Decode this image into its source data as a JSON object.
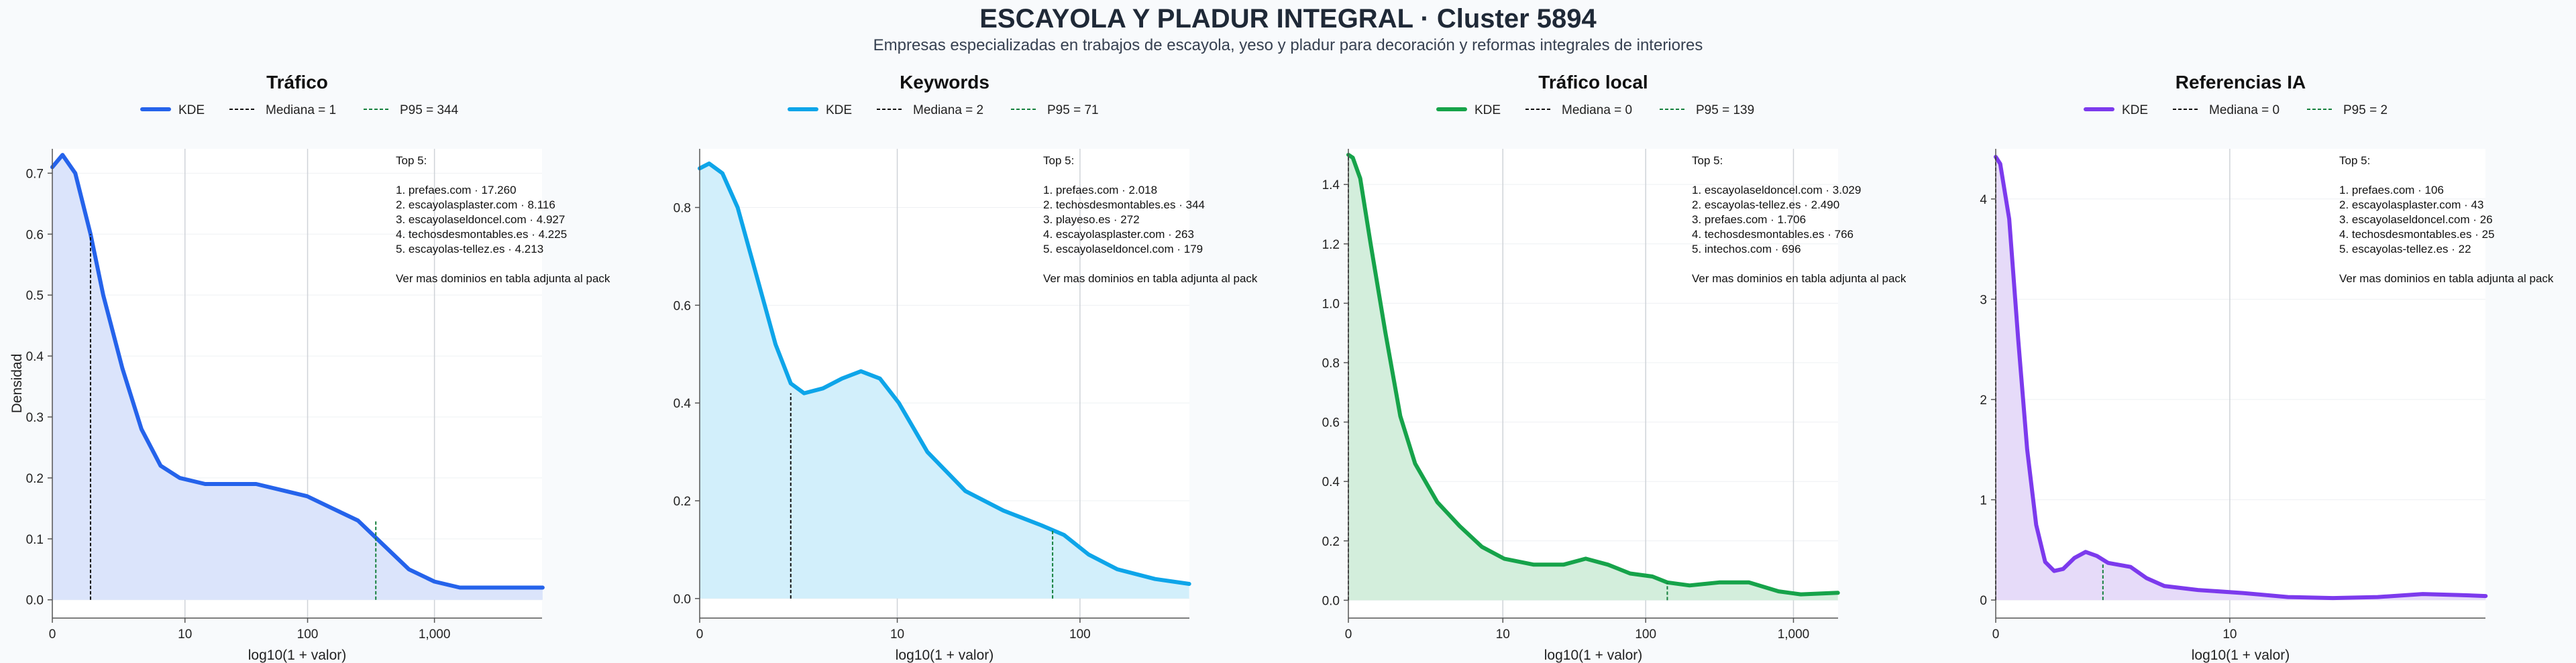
{
  "title": "ESCAYOLA Y PLADUR INTEGRAL · Cluster 5894",
  "subtitle": "Empresas especializadas en trabajos de escayola, yeso y pladur para decoración y reformas integrales de interiores",
  "chart_data": [
    {
      "type": "area",
      "title": "Tráfico",
      "xlabel": "log10(1 + valor)",
      "ylabel": "Densidad",
      "color": "#2563eb",
      "fill": "#dbe4fb",
      "xscale": "log1p",
      "xmax_value": 7000,
      "ylim": [
        -0.03,
        0.74
      ],
      "xticks": [
        {
          "value": 0,
          "label": "0"
        },
        {
          "value": 10,
          "label": "10"
        },
        {
          "value": 100,
          "label": "100"
        },
        {
          "value": 1000,
          "label": "1,000"
        }
      ],
      "yticks": [
        {
          "value": 0,
          "label": "0.0"
        },
        {
          "value": 0.1,
          "label": "0.1"
        },
        {
          "value": 0.2,
          "label": "0.2"
        },
        {
          "value": 0.3,
          "label": "0.3"
        },
        {
          "value": 0.4,
          "label": "0.4"
        },
        {
          "value": 0.5,
          "label": "0.5"
        },
        {
          "value": 0.6,
          "label": "0.6"
        },
        {
          "value": 0.7,
          "label": "0.7"
        }
      ],
      "kde": [
        [
          0,
          0.71
        ],
        [
          0.08,
          0.73
        ],
        [
          0.18,
          0.7
        ],
        [
          0.3,
          0.6
        ],
        [
          0.4,
          0.5
        ],
        [
          0.55,
          0.38
        ],
        [
          0.7,
          0.28
        ],
        [
          0.85,
          0.22
        ],
        [
          1.0,
          0.2
        ],
        [
          1.2,
          0.19
        ],
        [
          1.4,
          0.19
        ],
        [
          1.6,
          0.19
        ],
        [
          1.8,
          0.18
        ],
        [
          2.0,
          0.17
        ],
        [
          2.2,
          0.15
        ],
        [
          2.4,
          0.13
        ],
        [
          2.6,
          0.09
        ],
        [
          2.8,
          0.05
        ],
        [
          3.0,
          0.03
        ],
        [
          3.2,
          0.02
        ],
        [
          3.5,
          0.02
        ],
        [
          3.85,
          0.02
        ]
      ],
      "median": {
        "value": 1,
        "x": 0.3,
        "y": 0.6
      },
      "p95": {
        "value": 344,
        "x": 2.54,
        "y": 0.13
      },
      "legend": {
        "kde": "KDE",
        "median": "Mediana = 1",
        "p95": "P95 = 344"
      },
      "annotation": [
        "Top 5:",
        "",
        "1. prefaes.com · 17.260",
        "2. escayolasplaster.com · 8.116",
        "3. escayolaseldoncel.com · 4.927",
        "4. techosdesmontables.es · 4.225",
        "5. escayolas-tellez.es · 4.213",
        "",
        "Ver mas dominios en tabla adjunta al pack"
      ]
    },
    {
      "type": "area",
      "title": "Keywords",
      "xlabel": "log10(1 + valor)",
      "ylabel": "",
      "color": "#0ea5e9",
      "fill": "#d2effb",
      "xscale": "log1p",
      "xmax_value": 380,
      "ylim": [
        -0.04,
        0.92
      ],
      "xticks": [
        {
          "value": 0,
          "label": "0"
        },
        {
          "value": 10,
          "label": "10"
        },
        {
          "value": 100,
          "label": "100"
        }
      ],
      "yticks": [
        {
          "value": 0,
          "label": "0.0"
        },
        {
          "value": 0.2,
          "label": "0.2"
        },
        {
          "value": 0.4,
          "label": "0.4"
        },
        {
          "value": 0.6,
          "label": "0.6"
        },
        {
          "value": 0.8,
          "label": "0.8"
        }
      ],
      "kde": [
        [
          0,
          0.88
        ],
        [
          0.05,
          0.89
        ],
        [
          0.12,
          0.87
        ],
        [
          0.2,
          0.8
        ],
        [
          0.3,
          0.66
        ],
        [
          0.4,
          0.52
        ],
        [
          0.48,
          0.44
        ],
        [
          0.55,
          0.42
        ],
        [
          0.65,
          0.43
        ],
        [
          0.75,
          0.45
        ],
        [
          0.85,
          0.465
        ],
        [
          0.95,
          0.45
        ],
        [
          1.05,
          0.4
        ],
        [
          1.2,
          0.3
        ],
        [
          1.4,
          0.22
        ],
        [
          1.6,
          0.18
        ],
        [
          1.8,
          0.15
        ],
        [
          1.92,
          0.13
        ],
        [
          2.05,
          0.09
        ],
        [
          2.2,
          0.06
        ],
        [
          2.4,
          0.04
        ],
        [
          2.58,
          0.03
        ]
      ],
      "median": {
        "value": 2,
        "x": 0.48,
        "y": 0.42
      },
      "p95": {
        "value": 71,
        "x": 1.86,
        "y": 0.14
      },
      "legend": {
        "kde": "KDE",
        "median": "Mediana = 2",
        "p95": "P95 = 71"
      },
      "annotation": [
        "Top 5:",
        "",
        "1. prefaes.com · 2.018",
        "2. techosdesmontables.es · 344",
        "3. playeso.es · 272",
        "4. escayolasplaster.com · 263",
        "5. escayolaseldoncel.com · 179",
        "",
        "Ver mas dominios en tabla adjunta al pack"
      ]
    },
    {
      "type": "area",
      "title": "Tráfico local",
      "xlabel": "log10(1 + valor)",
      "ylabel": "",
      "color": "#16a34a",
      "fill": "#d3eedc",
      "xscale": "log1p",
      "xmax_value": 2000,
      "ylim": [
        -0.06,
        1.52
      ],
      "xticks": [
        {
          "value": 0,
          "label": "0"
        },
        {
          "value": 10,
          "label": "10"
        },
        {
          "value": 100,
          "label": "100"
        },
        {
          "value": 1000,
          "label": "1,000"
        }
      ],
      "yticks": [
        {
          "value": 0,
          "label": "0.0"
        },
        {
          "value": 0.2,
          "label": "0.2"
        },
        {
          "value": 0.4,
          "label": "0.4"
        },
        {
          "value": 0.6,
          "label": "0.6"
        },
        {
          "value": 0.8,
          "label": "0.8"
        },
        {
          "value": 1.0,
          "label": "1.0"
        },
        {
          "value": 1.2,
          "label": "1.2"
        },
        {
          "value": 1.4,
          "label": "1.4"
        }
      ],
      "kde": [
        [
          0,
          1.5
        ],
        [
          0.03,
          1.49
        ],
        [
          0.08,
          1.42
        ],
        [
          0.15,
          1.2
        ],
        [
          0.25,
          0.9
        ],
        [
          0.35,
          0.62
        ],
        [
          0.45,
          0.46
        ],
        [
          0.6,
          0.33
        ],
        [
          0.75,
          0.25
        ],
        [
          0.9,
          0.18
        ],
        [
          1.05,
          0.14
        ],
        [
          1.25,
          0.12
        ],
        [
          1.45,
          0.12
        ],
        [
          1.6,
          0.14
        ],
        [
          1.75,
          0.12
        ],
        [
          1.9,
          0.09
        ],
        [
          2.05,
          0.08
        ],
        [
          2.15,
          0.06
        ],
        [
          2.3,
          0.05
        ],
        [
          2.5,
          0.06
        ],
        [
          2.7,
          0.06
        ],
        [
          2.9,
          0.03
        ],
        [
          3.05,
          0.02
        ],
        [
          3.3,
          0.025
        ]
      ],
      "median": {
        "value": 0,
        "x": 0,
        "y": 1.5
      },
      "p95": {
        "value": 139,
        "x": 2.15,
        "y": 0.06
      },
      "legend": {
        "kde": "KDE",
        "median": "Mediana = 0",
        "p95": "P95 = 139"
      },
      "annotation": [
        "Top 5:",
        "",
        "1. escayolaseldoncel.com · 3.029",
        "2. escayolas-tellez.es · 2.490",
        "3. prefaes.com · 1.706",
        "4. techosdesmontables.es · 766",
        "5. intechos.com · 696",
        "",
        "Ver mas dominios en tabla adjunta al pack"
      ]
    },
    {
      "type": "area",
      "title": "Referencias IA",
      "xlabel": "log10(1 + valor)",
      "ylabel": "",
      "color": "#7c3aed",
      "fill": "#e6dbf9",
      "xscale": "log1p",
      "xmax_value": 150,
      "ylim": [
        -0.18,
        4.5
      ],
      "xticks": [
        {
          "value": 0,
          "label": "0"
        },
        {
          "value": 10,
          "label": "10"
        }
      ],
      "yticks": [
        {
          "value": 0,
          "label": "0"
        },
        {
          "value": 1,
          "label": "1"
        },
        {
          "value": 2,
          "label": "2"
        },
        {
          "value": 3,
          "label": "3"
        },
        {
          "value": 4,
          "label": "4"
        }
      ],
      "kde": [
        [
          0,
          4.42
        ],
        [
          0.02,
          4.35
        ],
        [
          0.06,
          3.8
        ],
        [
          0.1,
          2.6
        ],
        [
          0.14,
          1.5
        ],
        [
          0.18,
          0.75
        ],
        [
          0.22,
          0.38
        ],
        [
          0.26,
          0.29
        ],
        [
          0.3,
          0.31
        ],
        [
          0.35,
          0.42
        ],
        [
          0.4,
          0.48
        ],
        [
          0.45,
          0.44
        ],
        [
          0.5,
          0.37
        ],
        [
          0.55,
          0.35
        ],
        [
          0.6,
          0.33
        ],
        [
          0.67,
          0.22
        ],
        [
          0.75,
          0.14
        ],
        [
          0.9,
          0.1
        ],
        [
          1.1,
          0.07
        ],
        [
          1.3,
          0.03
        ],
        [
          1.5,
          0.02
        ],
        [
          1.7,
          0.03
        ],
        [
          1.9,
          0.06
        ],
        [
          2.06,
          0.05
        ],
        [
          2.18,
          0.04
        ]
      ],
      "median": {
        "value": 0,
        "x": 0,
        "y": 4.42
      },
      "p95": {
        "value": 2,
        "x": 0.477,
        "y": 0.36
      },
      "legend": {
        "kde": "KDE",
        "median": "Mediana = 0",
        "p95": "P95 = 2"
      },
      "annotation": [
        "Top 5:",
        "",
        "1. prefaes.com · 106",
        "2. escayolasplaster.com · 43",
        "3. escayolaseldoncel.com · 26",
        "4. techosdesmontables.es · 25",
        "5. escayolas-tellez.es · 22",
        "",
        "Ver mas dominios en tabla adjunta al pack"
      ]
    }
  ]
}
